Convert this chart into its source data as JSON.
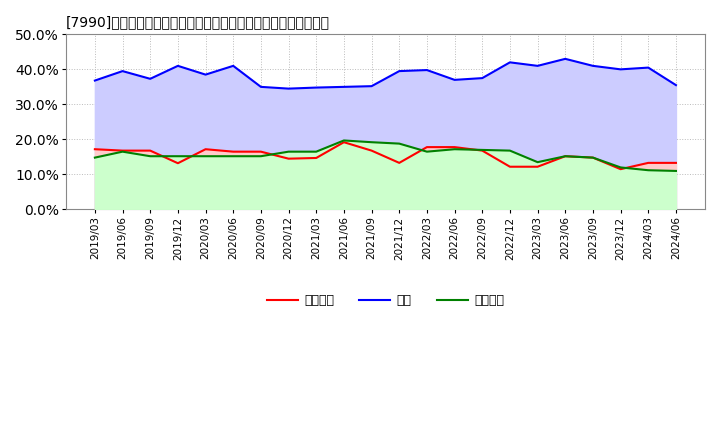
{
  "title": "[7990]　売上債権、在庫、買入債務の総資産に対する比率の推移",
  "dates": [
    "2019/03",
    "2019/06",
    "2019/09",
    "2019/12",
    "2020/03",
    "2020/06",
    "2020/09",
    "2020/12",
    "2021/03",
    "2021/06",
    "2021/09",
    "2021/12",
    "2022/03",
    "2022/06",
    "2022/09",
    "2022/12",
    "2023/03",
    "2023/06",
    "2023/09",
    "2023/12",
    "2024/03",
    "2024/06"
  ],
  "urikake": [
    0.172,
    0.168,
    0.168,
    0.132,
    0.172,
    0.165,
    0.165,
    0.145,
    0.147,
    0.192,
    0.168,
    0.133,
    0.178,
    0.178,
    0.168,
    0.122,
    0.122,
    0.152,
    0.148,
    0.115,
    0.133,
    0.133
  ],
  "zaiko": [
    0.368,
    0.395,
    0.373,
    0.41,
    0.385,
    0.41,
    0.35,
    0.345,
    0.348,
    0.35,
    0.352,
    0.395,
    0.398,
    0.37,
    0.375,
    0.42,
    0.41,
    0.43,
    0.41,
    0.4,
    0.405,
    0.355
  ],
  "kainyu": [
    0.148,
    0.165,
    0.152,
    0.152,
    0.152,
    0.152,
    0.152,
    0.165,
    0.165,
    0.197,
    0.192,
    0.188,
    0.165,
    0.172,
    0.17,
    0.168,
    0.135,
    0.152,
    0.148,
    0.12,
    0.112,
    0.11
  ],
  "urikake_color": "#ff0000",
  "zaiko_color": "#0000ff",
  "kainyu_color": "#008000",
  "urikake_fill": "#ffcccc",
  "zaiko_fill": "#ccccff",
  "kainyu_fill": "#ccffcc",
  "ylim": [
    0.0,
    0.5
  ],
  "yticks": [
    0.0,
    0.1,
    0.2,
    0.3,
    0.4,
    0.5
  ],
  "legend_labels": [
    "売上債権",
    "在庫",
    "買入債務"
  ],
  "bg_color": "#ffffff",
  "grid_color": "#bbbbbb"
}
